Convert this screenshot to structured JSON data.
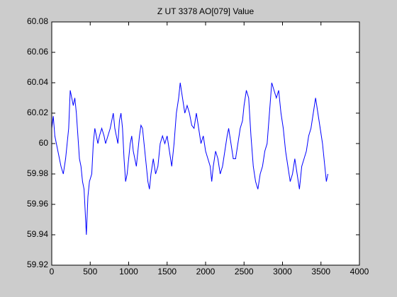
{
  "chart_data": {
    "type": "line",
    "title": "Z UT 3378 AO[079] Value",
    "color": "#0000ff",
    "x": [
      0,
      20,
      40,
      60,
      80,
      100,
      120,
      150,
      180,
      200,
      220,
      240,
      260,
      280,
      300,
      320,
      340,
      360,
      380,
      400,
      420,
      440,
      450,
      470,
      490,
      520,
      540,
      560,
      580,
      600,
      620,
      650,
      680,
      700,
      730,
      760,
      780,
      800,
      820,
      840,
      860,
      880,
      900,
      920,
      940,
      960,
      980,
      1000,
      1020,
      1040,
      1060,
      1080,
      1100,
      1120,
      1140,
      1160,
      1180,
      1200,
      1220,
      1250,
      1270,
      1290,
      1320,
      1350,
      1380,
      1410,
      1440,
      1470,
      1500,
      1530,
      1560,
      1590,
      1620,
      1650,
      1670,
      1700,
      1730,
      1760,
      1790,
      1820,
      1850,
      1880,
      1910,
      1940,
      1970,
      2000,
      2030,
      2060,
      2080,
      2100,
      2130,
      2160,
      2190,
      2220,
      2250,
      2280,
      2300,
      2330,
      2360,
      2390,
      2420,
      2450,
      2480,
      2500,
      2530,
      2560,
      2590,
      2620,
      2650,
      2680,
      2710,
      2740,
      2770,
      2800,
      2830,
      2860,
      2890,
      2920,
      2950,
      2980,
      3010,
      3040,
      3070,
      3100,
      3130,
      3160,
      3190,
      3220,
      3250,
      3280,
      3310,
      3340,
      3370,
      3400,
      3430,
      3460,
      3490,
      3520,
      3550,
      3570,
      3590
    ],
    "values": [
      60.01,
      60.018,
      60.005,
      60.0,
      59.995,
      59.99,
      59.985,
      59.98,
      59.99,
      60.0,
      60.01,
      60.035,
      60.03,
      60.025,
      60.03,
      60.02,
      60.005,
      59.99,
      59.985,
      59.975,
      59.97,
      59.95,
      59.94,
      59.965,
      59.975,
      59.98,
      60.0,
      60.01,
      60.005,
      60.0,
      60.005,
      60.01,
      60.005,
      60.0,
      60.005,
      60.01,
      60.015,
      60.02,
      60.01,
      60.005,
      60.0,
      60.015,
      60.02,
      60.01,
      59.99,
      59.975,
      59.98,
      59.99,
      60.0,
      60.005,
      59.995,
      59.99,
      59.985,
      59.995,
      60.005,
      60.012,
      60.01,
      60.0,
      59.99,
      59.975,
      59.97,
      59.98,
      59.99,
      59.98,
      59.985,
      60.0,
      60.005,
      60.0,
      60.005,
      59.995,
      59.985,
      60.0,
      60.02,
      60.03,
      60.04,
      60.03,
      60.02,
      60.025,
      60.02,
      60.012,
      60.01,
      60.02,
      60.01,
      60.0,
      60.005,
      59.995,
      59.99,
      59.985,
      59.975,
      59.985,
      59.995,
      59.99,
      59.98,
      59.985,
      59.995,
      60.005,
      60.01,
      60.0,
      59.99,
      59.99,
      60.0,
      60.01,
      60.015,
      60.025,
      60.035,
      60.03,
      60.005,
      59.985,
      59.975,
      59.97,
      59.98,
      59.985,
      59.995,
      60.0,
      60.02,
      60.04,
      60.035,
      60.03,
      60.035,
      60.02,
      60.01,
      59.995,
      59.985,
      59.975,
      59.98,
      59.99,
      59.98,
      59.97,
      59.985,
      59.99,
      59.995,
      60.005,
      60.01,
      60.02,
      60.03,
      60.02,
      60.01,
      60.0,
      59.985,
      59.975,
      59.98
    ],
    "xlim": [
      0,
      4000
    ],
    "xticks": [
      0,
      500,
      1000,
      1500,
      2000,
      2500,
      3000,
      3500,
      4000
    ],
    "ylim": [
      59.92,
      60.08
    ],
    "yticks": [
      59.92,
      59.94,
      59.96,
      59.98,
      60,
      60.02,
      60.04,
      60.06,
      60.08
    ]
  }
}
